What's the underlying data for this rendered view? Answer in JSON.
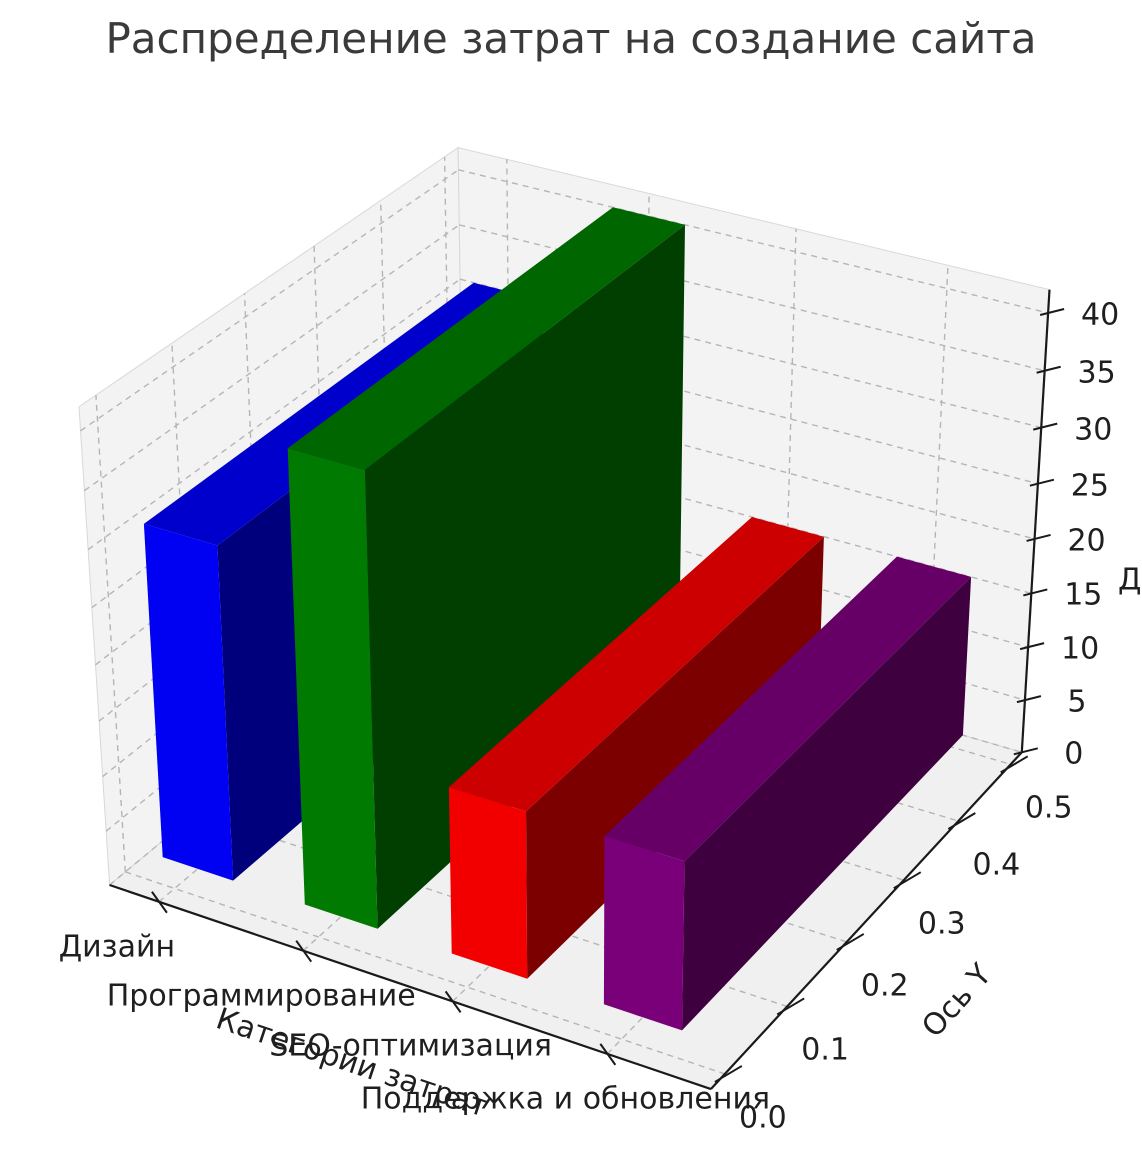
{
  "title": "Распределение затрат на создание сайта",
  "chart_data": {
    "type": "bar",
    "projection": "3d",
    "title": "Распределение затрат на создание сайта",
    "categories": [
      "Дизайн",
      "Программирование",
      "SEO-оптимизация",
      "Поддержка и обновления"
    ],
    "values": [
      30,
      40,
      15,
      15
    ],
    "bar_colors": [
      "#0000ff",
      "#008000",
      "#ff0000",
      "#800080"
    ],
    "xlabel": "Категории затрат",
    "ylabel": "Ось Y",
    "zlabel_fragment": "Доля",
    "x_ticks": [
      "Дизайн",
      "Программирование",
      "SEO-оптимизация",
      "Поддержка и обновления"
    ],
    "y_ticks": [
      "0.0",
      "0.1",
      "0.2",
      "0.3",
      "0.4",
      "0.5"
    ],
    "z_ticks": [
      "0",
      "5",
      "10",
      "15",
      "20",
      "25",
      "30",
      "35",
      "40"
    ],
    "ylim": [
      0.0,
      0.5
    ],
    "zlim": [
      0,
      40
    ],
    "grid": true,
    "legend": "none"
  },
  "colors": {
    "pane": "#f3f3f3",
    "floor": "#f0f0f0",
    "grid": "#b5b5b5",
    "pane_edge": "#d8d8d8",
    "spine": "#1a1a1a",
    "text": "#1f1f1f",
    "title_text": "#3a3a3a",
    "background": "#ffffff"
  }
}
